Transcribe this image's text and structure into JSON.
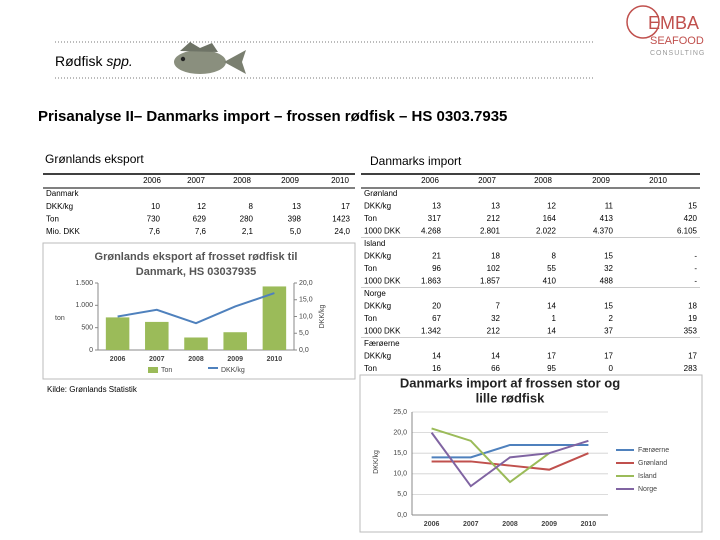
{
  "header": {
    "heading_plain": "Rødfisk ",
    "heading_italic": "spp.",
    "logo_line1": "EMBA",
    "logo_line2": "SEAFOOD",
    "logo_line3": "CONSULTING",
    "title": "Prisanalyse II– Danmarks import – frossen rødfisk – HS 0303.7935"
  },
  "left_table": {
    "title": "Grønlands eksport",
    "columns": [
      "2006",
      "2007",
      "2008",
      "2009",
      "2010"
    ],
    "rows": [
      [
        "Danmark"
      ],
      [
        "DKK/kg",
        "10",
        "12",
        "8",
        "13",
        "17"
      ],
      [
        "Ton",
        "730",
        "629",
        "280",
        "398",
        "1423"
      ],
      [
        "Mio. DKK",
        "7,6",
        "7,6",
        "2,1",
        "5,0",
        "24,0"
      ]
    ]
  },
  "source": "Kilde: Grønlands Statistik",
  "right_table": {
    "title": "Danmarks import",
    "columns": [
      "2006",
      "2007",
      "2008",
      "2009",
      "2010"
    ],
    "rows": [
      [
        "Grønland"
      ],
      [
        "DKK/kg",
        "13",
        "13",
        "12",
        "11",
        "15"
      ],
      [
        "Ton",
        "317",
        "212",
        "164",
        "413",
        "420"
      ],
      [
        "1000 DKK",
        "4.268",
        "2.801",
        "2.022",
        "4.370",
        "6.105"
      ],
      [
        "Island"
      ],
      [
        "DKK/kg",
        "21",
        "18",
        "8",
        "15",
        "-"
      ],
      [
        "Ton",
        "96",
        "102",
        "55",
        "32",
        "-"
      ],
      [
        "1000 DKK",
        "1.863",
        "1.857",
        "410",
        "488",
        "-"
      ],
      [
        "Norge"
      ],
      [
        "DKK/kg",
        "20",
        "7",
        "14",
        "15",
        "18"
      ],
      [
        "Ton",
        "67",
        "32",
        "1",
        "2",
        "19"
      ],
      [
        "1000 DKK",
        "1.342",
        "212",
        "14",
        "37",
        "353"
      ],
      [
        "Færøerne"
      ],
      [
        "DKK/kg",
        "14",
        "14",
        "17",
        "17",
        "17"
      ],
      [
        "Ton",
        "16",
        "66",
        "95",
        "0",
        "283"
      ]
    ]
  },
  "chart_data": [
    {
      "type": "bar",
      "title": [
        "Grønlands eksport af frosset rødfisk til",
        "Danmark, HS 03037935"
      ],
      "categories": [
        "2006",
        "2007",
        "2008",
        "2009",
        "2010"
      ],
      "series": [
        {
          "name": "Ton",
          "color": "#9bbb59",
          "values": [
            730,
            629,
            280,
            398,
            1423
          ]
        },
        {
          "name": "DKK/kg",
          "color": "#4f81bd",
          "type": "line",
          "axis": "y2",
          "values": [
            10,
            12,
            8,
            13,
            17
          ]
        }
      ],
      "ylabel": "ton",
      "y2label": "DKK/kg",
      "ylim": [
        0,
        1500
      ],
      "yticks": [
        0,
        500,
        {
          "value": 1000,
          "label": "1.000"
        },
        {
          "value": 1500,
          "label": "1.500"
        }
      ],
      "y2lim": [
        0,
        20
      ],
      "y2ticks": [
        {
          "value": 0,
          "label": "0,0"
        },
        {
          "value": 5,
          "label": "5,0"
        },
        {
          "value": 10,
          "label": "10,0"
        },
        {
          "value": 15,
          "label": "15,0"
        },
        {
          "value": 20,
          "label": "20,0"
        }
      ],
      "grid": false,
      "legend": "bottom"
    },
    {
      "type": "line",
      "title": [
        "Danmarks import af frossen stor og",
        "lille rødfisk"
      ],
      "categories": [
        "2006",
        "2007",
        "2008",
        "2009",
        "2010"
      ],
      "series": [
        {
          "name": "Færøerne",
          "color": "#4f81bd",
          "values": [
            14,
            14,
            17,
            17,
            17
          ]
        },
        {
          "name": "Grønland",
          "color": "#c0504d",
          "values": [
            13,
            13,
            12,
            11,
            15
          ]
        },
        {
          "name": "Island",
          "color": "#9bbb59",
          "values": [
            21,
            18,
            8,
            15,
            null
          ]
        },
        {
          "name": "Norge",
          "color": "#8064a2",
          "values": [
            20,
            7,
            14,
            15,
            18
          ]
        }
      ],
      "ylabel": "DKK/kg",
      "ylim": [
        0,
        25
      ],
      "yticks": [
        {
          "value": 0,
          "label": "0,0"
        },
        {
          "value": 5,
          "label": "5,0"
        },
        {
          "value": 10,
          "label": "10,0"
        },
        {
          "value": 15,
          "label": "15,0"
        },
        {
          "value": 20,
          "label": "20,0"
        },
        {
          "value": 25,
          "label": "25,0"
        }
      ],
      "grid": true,
      "legend": "right"
    }
  ]
}
